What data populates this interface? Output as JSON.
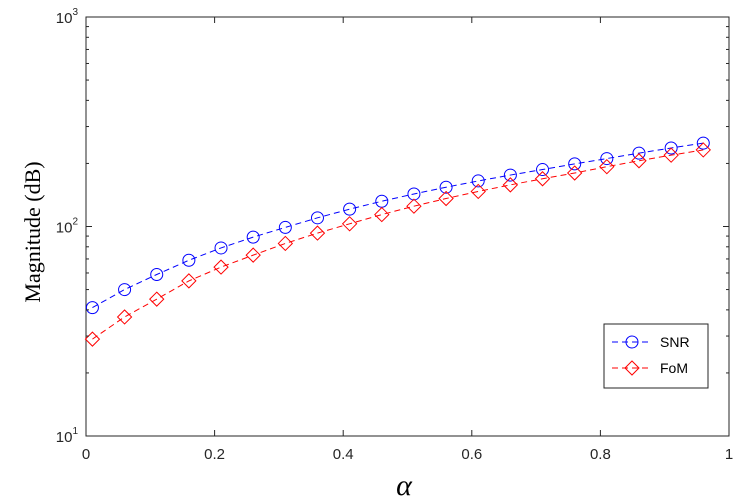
{
  "chart_data": {
    "type": "line",
    "title": "",
    "xlabel": "α",
    "ylabel": "Magnitude (dB)",
    "x_scale": "linear",
    "y_scale": "log",
    "xlim": [
      0,
      1
    ],
    "ylim": [
      10,
      1000
    ],
    "x_ticks": [
      0,
      0.2,
      0.4,
      0.6,
      0.8,
      1
    ],
    "x_tick_labels": [
      "0",
      "0.2",
      "0.4",
      "0.6",
      "0.8",
      "1"
    ],
    "y_ticks": [
      10,
      100,
      1000
    ],
    "y_tick_labels": [
      {
        "base": "10",
        "exp": "1"
      },
      {
        "base": "10",
        "exp": "2"
      },
      {
        "base": "10",
        "exp": "3"
      }
    ],
    "grid": false,
    "legend_position": "bottom-right",
    "x": [
      0.01,
      0.06,
      0.11,
      0.16,
      0.21,
      0.26,
      0.31,
      0.36,
      0.41,
      0.46,
      0.51,
      0.56,
      0.61,
      0.66,
      0.71,
      0.76,
      0.81,
      0.86,
      0.91,
      0.96
    ],
    "series": [
      {
        "name": "SNR",
        "color": "#0000ff",
        "marker": "circle",
        "line_style": "dashed",
        "values": [
          41,
          50,
          59,
          69,
          79,
          89,
          99,
          110,
          121,
          132,
          143,
          154,
          165,
          176,
          187,
          199,
          211,
          224,
          237,
          250
        ]
      },
      {
        "name": "FoM",
        "color": "#ff0000",
        "marker": "diamond",
        "line_style": "dashed",
        "values": [
          29,
          37,
          45,
          55,
          64,
          73,
          83,
          93,
          103,
          114,
          125,
          136,
          147,
          158,
          169,
          180,
          193,
          206,
          219,
          232
        ]
      }
    ]
  }
}
